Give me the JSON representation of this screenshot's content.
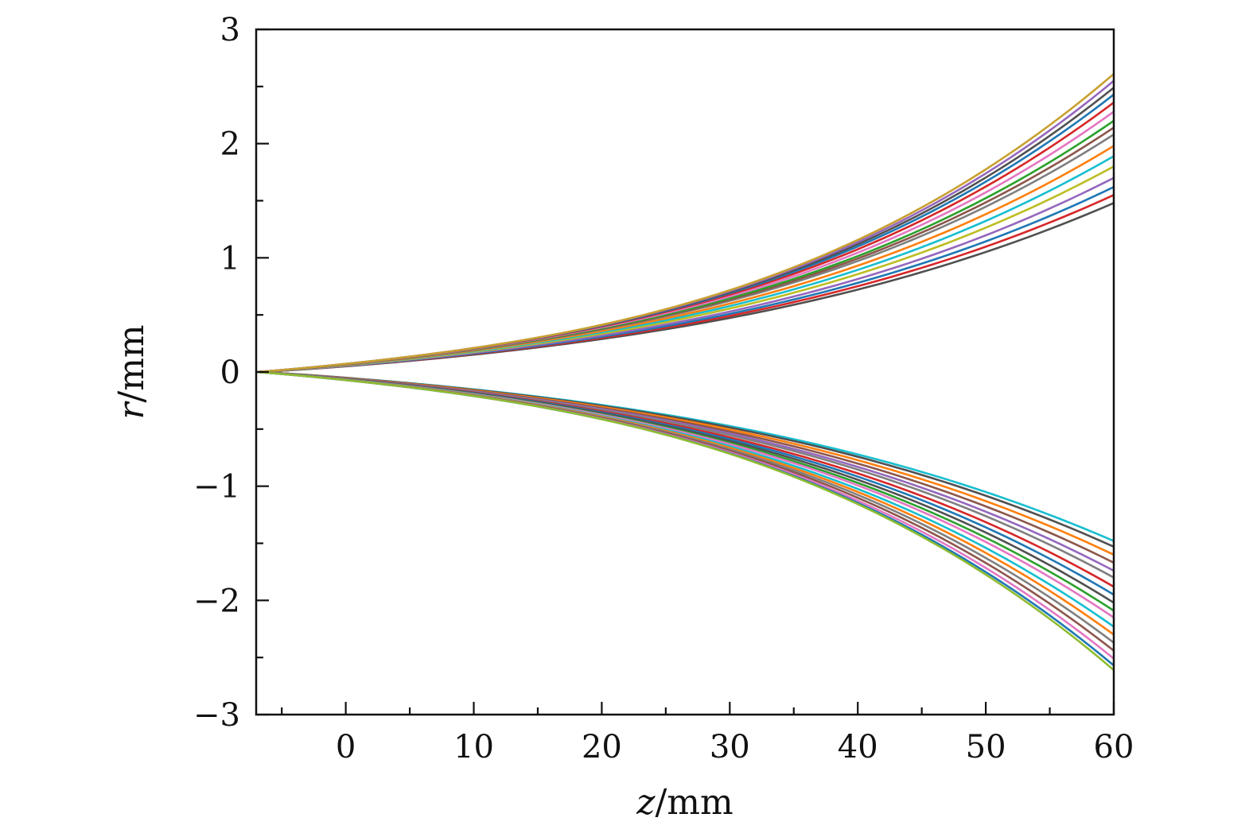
{
  "chart_data": {
    "type": "line",
    "title": "",
    "xlabel": {
      "var": "z",
      "unit": "/mm"
    },
    "ylabel": {
      "var": "r",
      "unit": "/mm"
    },
    "xlim": [
      -7,
      60
    ],
    "ylim": [
      -3,
      3
    ],
    "x_ticks": [
      0,
      10,
      20,
      30,
      40,
      50,
      60
    ],
    "x_tick_labels": [
      "0",
      "10",
      "20",
      "30",
      "40",
      "50",
      "60"
    ],
    "y_ticks": [
      -3,
      -2,
      -1,
      0,
      1,
      2,
      3
    ],
    "y_tick_labels": [
      "−3",
      "−2",
      "−1",
      "0",
      "1",
      "2",
      "3"
    ],
    "x_minor_step": 5,
    "y_minor_step": 0.5,
    "grid": false,
    "legend": "none",
    "z_start": -7,
    "z_end": 60,
    "upper_end_values": [
      1.48,
      1.55,
      1.62,
      1.7,
      1.8,
      1.89,
      1.98,
      2.08,
      2.14,
      2.2,
      2.28,
      2.36,
      2.43,
      2.49,
      2.55,
      2.61
    ],
    "lower_end_values": [
      -1.48,
      -1.53,
      -1.6,
      -1.67,
      -1.74,
      -1.8,
      -1.88,
      -1.95,
      -2.02,
      -2.09,
      -2.15,
      -2.23,
      -2.3,
      -2.37,
      -2.44,
      -2.51,
      -2.57,
      -2.61
    ],
    "upper_colors": [
      "#505050",
      "#d62728",
      "#1f77b4",
      "#9467bd",
      "#bcbd22",
      "#17becf",
      "#ff7f0e",
      "#7f7f7f",
      "#8c564b",
      "#2ca02c",
      "#e377c2",
      "#d62728",
      "#1f77b4",
      "#505050",
      "#9467bd",
      "#c8a030"
    ],
    "lower_colors": [
      "#17becf",
      "#505050",
      "#ff7f0e",
      "#8c564b",
      "#9467bd",
      "#7f7f7f",
      "#d62728",
      "#1f77b4",
      "#505050",
      "#2ca02c",
      "#e377c2",
      "#17becf",
      "#ff7f0e",
      "#7f7f7f",
      "#8c564b",
      "#e377c2",
      "#1f77b4",
      "#8fbc30"
    ]
  }
}
